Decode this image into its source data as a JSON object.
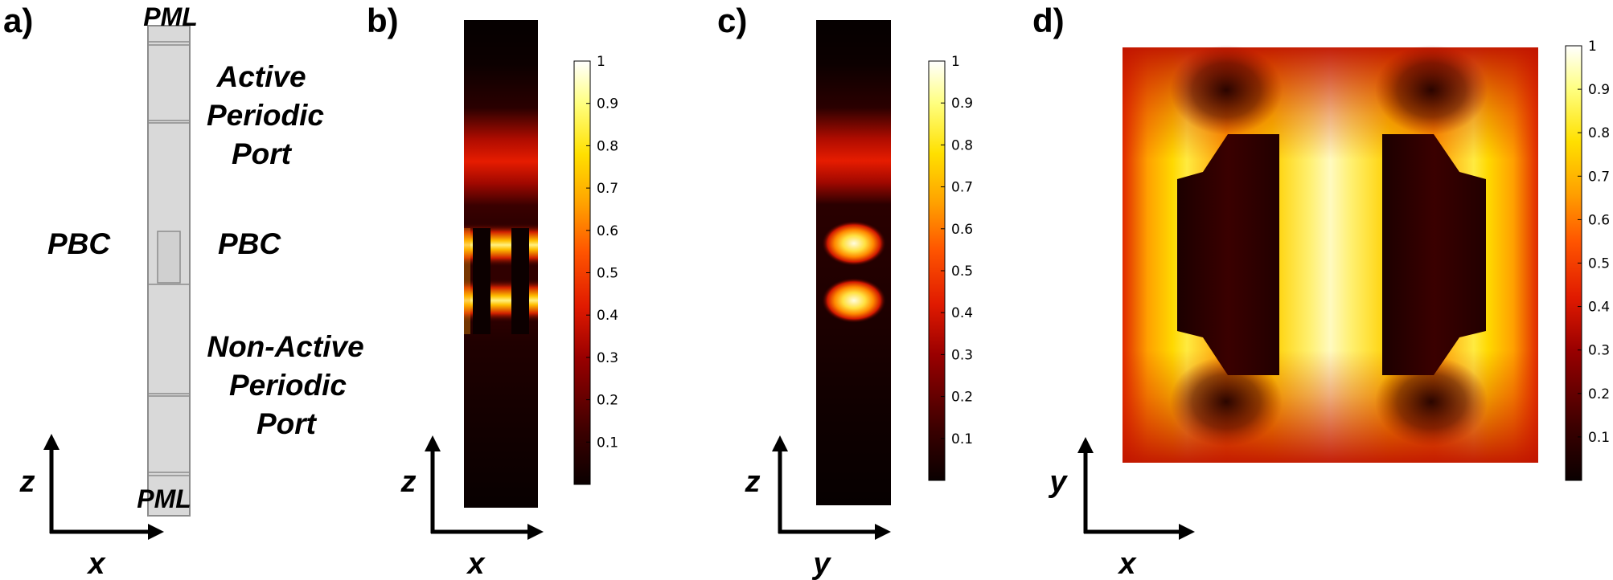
{
  "panels": {
    "a": {
      "label": "a)",
      "top_label": "PML",
      "bottom_label": "PML",
      "active_port": [
        "Active",
        "Periodic",
        "Port"
      ],
      "non_active_port": [
        "Non-Active",
        "Periodic",
        "Port"
      ],
      "left_bc": "PBC",
      "right_bc": "PBC",
      "axis_vertical": "z",
      "axis_horizontal": "x"
    },
    "b": {
      "label": "b)",
      "axis_vertical": "z",
      "axis_horizontal": "x"
    },
    "c": {
      "label": "c)",
      "axis_vertical": "z",
      "axis_horizontal": "y"
    },
    "d": {
      "label": "d)",
      "axis_vertical": "y",
      "axis_horizontal": "x"
    }
  },
  "colorbar": {
    "colormap": "hot",
    "min": 0,
    "max": 1,
    "ticks": [
      "0.1",
      "0.2",
      "0.3",
      "0.4",
      "0.5",
      "0.6",
      "0.7",
      "0.8",
      "0.9",
      "1"
    ]
  },
  "colors": {
    "geometry_fill": "#d9d9d9",
    "geometry_stroke": "#8c8c8c",
    "field_dark": "#1a0000",
    "field_red": "#cc1a00",
    "field_yellow": "#ffd200",
    "field_white": "#fffad0"
  }
}
